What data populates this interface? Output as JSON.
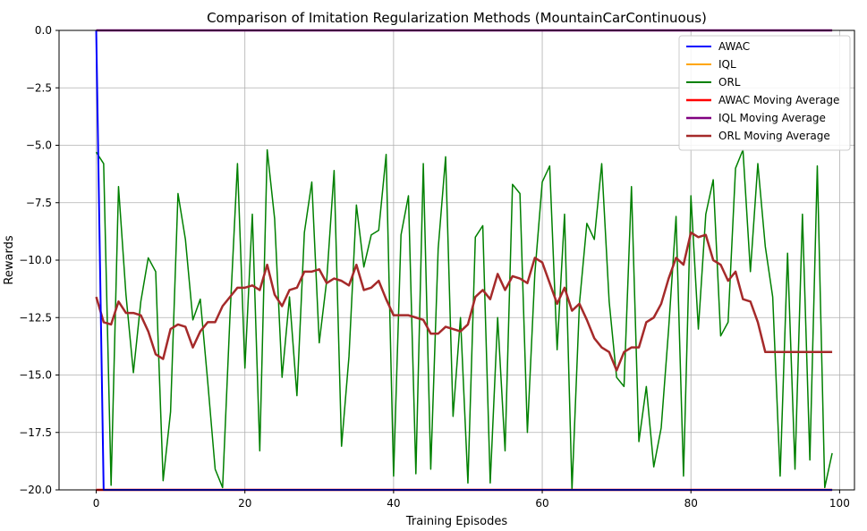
{
  "chart_data": {
    "type": "line",
    "title": "Comparison of Imitation Regularization Methods (MountainCarContinuous)",
    "xlabel": "Training Episodes",
    "ylabel": "Rewards",
    "xlim": [
      -5,
      102
    ],
    "ylim": [
      -20,
      0
    ],
    "xticks": [
      0,
      20,
      40,
      60,
      80,
      100
    ],
    "xtick_labels": [
      "0",
      "20",
      "40",
      "60",
      "80",
      "100"
    ],
    "yticks": [
      0,
      -2.5,
      -5,
      -7.5,
      -10,
      -12.5,
      -15,
      -17.5,
      -20
    ],
    "ytick_labels": [
      "0.0",
      "−2.5",
      "−5.0",
      "−7.5",
      "−10.0",
      "−12.5",
      "−15.0",
      "−17.5",
      "−20.0"
    ],
    "grid": true,
    "legend_position": "top-right",
    "series": [
      {
        "name": "AWAC",
        "color": "#0000ff",
        "width": 2,
        "x": [
          0,
          1,
          2,
          99
        ],
        "y": [
          0,
          -20,
          -20,
          -20
        ]
      },
      {
        "name": "IQL",
        "color": "#ffa500",
        "width": 1.5,
        "x": [
          0,
          99
        ],
        "y": [
          0,
          0
        ]
      },
      {
        "name": "ORL",
        "color": "#008000",
        "width": 1.5,
        "x": [
          0,
          1,
          2,
          3,
          4,
          5,
          6,
          7,
          8,
          9,
          10,
          11,
          12,
          13,
          14,
          15,
          16,
          17,
          18,
          19,
          20,
          21,
          22,
          23,
          24,
          25,
          26,
          27,
          28,
          29,
          30,
          31,
          32,
          33,
          34,
          35,
          36,
          37,
          38,
          39,
          40,
          41,
          42,
          43,
          44,
          45,
          46,
          47,
          48,
          49,
          50,
          51,
          52,
          53,
          54,
          55,
          56,
          57,
          58,
          59,
          60,
          61,
          62,
          63,
          64,
          65,
          66,
          67,
          68,
          69,
          70,
          71,
          72,
          73,
          74,
          75,
          76,
          77,
          78,
          79,
          80,
          81,
          82,
          83,
          84,
          85,
          86,
          87,
          88,
          89,
          90,
          91,
          92,
          93,
          94,
          95,
          96,
          97,
          98,
          99
        ],
        "y": [
          -5.3,
          -5.8,
          -19.8,
          -6.8,
          -11.5,
          -14.9,
          -11.8,
          -9.9,
          -10.5,
          -19.6,
          -16.6,
          -7.1,
          -9.1,
          -12.6,
          -11.7,
          -15.3,
          -19.1,
          -19.9,
          -12.4,
          -5.8,
          -14.7,
          -8.0,
          -18.3,
          -5.2,
          -8.2,
          -15.1,
          -11.6,
          -15.9,
          -8.8,
          -6.6,
          -13.6,
          -10.9,
          -6.1,
          -18.1,
          -14.2,
          -7.6,
          -10.3,
          -8.9,
          -8.7,
          -5.4,
          -19.4,
          -8.9,
          -7.2,
          -19.3,
          -5.8,
          -19.1,
          -9.5,
          -5.5,
          -16.8,
          -12.5,
          -19.7,
          -9.0,
          -8.5,
          -19.7,
          -12.5,
          -18.3,
          -6.7,
          -7.1,
          -17.5,
          -10.6,
          -6.6,
          -5.9,
          -13.9,
          -8.0,
          -20.0,
          -11.9,
          -8.4,
          -9.1,
          -5.8,
          -11.8,
          -15.1,
          -15.5,
          -6.8,
          -17.9,
          -15.5,
          -19.0,
          -17.3,
          -13.0,
          -8.1,
          -19.4,
          -7.2,
          -13.0,
          -8.0,
          -6.5,
          -13.3,
          -12.7,
          -6.0,
          -5.2,
          -10.5,
          -5.8,
          -9.4,
          -11.6,
          -19.4,
          -9.7,
          -19.1,
          -8.0,
          -18.7,
          -5.9,
          -19.9,
          -18.4
        ]
      },
      {
        "name": "AWAC Moving Average",
        "color": "#ff0000",
        "width": 2.5,
        "x": [
          0,
          99
        ],
        "y": [
          -20,
          -20
        ]
      },
      {
        "name": "IQL Moving Average",
        "color": "#800080",
        "width": 2.5,
        "x": [
          0,
          99
        ],
        "y": [
          0,
          0
        ]
      },
      {
        "name": "ORL Moving Average",
        "color": "#a52a2a",
        "width": 2.5,
        "x": [
          0,
          1,
          2,
          3,
          4,
          5,
          6,
          7,
          8,
          9,
          10,
          11,
          12,
          13,
          14,
          15,
          16,
          17,
          18,
          19,
          20,
          21,
          22,
          23,
          24,
          25,
          26,
          27,
          28,
          29,
          30,
          31,
          32,
          33,
          34,
          35,
          36,
          37,
          38,
          39,
          40,
          41,
          42,
          43,
          44,
          45,
          46,
          47,
          48,
          49,
          50,
          51,
          52,
          53,
          54,
          55,
          56,
          57,
          58,
          59,
          60,
          61,
          62,
          63,
          64,
          65,
          66,
          67,
          68,
          69,
          70,
          71,
          72,
          73,
          74,
          75,
          76,
          77,
          78,
          79,
          80,
          81,
          82,
          83,
          84,
          85,
          86,
          87,
          88,
          89,
          90,
          91,
          92,
          93,
          94,
          95,
          96,
          97,
          98,
          99
        ],
        "y": [
          -11.6,
          -12.7,
          -12.8,
          -11.8,
          -12.3,
          -12.3,
          -12.4,
          -13.1,
          -14.1,
          -14.3,
          -13.0,
          -12.8,
          -12.9,
          -13.8,
          -13.1,
          -12.7,
          -12.7,
          -12.0,
          -11.6,
          -11.2,
          -11.2,
          -11.1,
          -11.3,
          -10.2,
          -11.5,
          -12.0,
          -11.3,
          -11.2,
          -10.5,
          -10.5,
          -10.4,
          -11.0,
          -10.8,
          -10.9,
          -11.1,
          -10.2,
          -11.3,
          -11.2,
          -10.9,
          -11.7,
          -12.4,
          -12.4,
          -12.4,
          -12.5,
          -12.6,
          -13.2,
          -13.2,
          -12.9,
          -13.0,
          -13.1,
          -12.8,
          -11.6,
          -11.3,
          -11.7,
          -10.6,
          -11.3,
          -10.7,
          -10.8,
          -11.0,
          -9.9,
          -10.1,
          -11.0,
          -11.9,
          -11.2,
          -12.2,
          -11.9,
          -12.6,
          -13.4,
          -13.8,
          -14.0,
          -14.8,
          -14.0,
          -13.8,
          -13.8,
          -12.7,
          -12.5,
          -11.9,
          -10.8,
          -9.9,
          -10.2,
          -8.8,
          -9.0,
          -8.9,
          -10.0,
          -10.2,
          -10.9,
          -10.5,
          -11.7,
          -11.8,
          -12.7,
          -14.0,
          -14.0,
          -14.0,
          -14.0,
          -14.0,
          -14.0,
          -14.0,
          -14.0,
          -14.0,
          -14.0
        ]
      }
    ]
  }
}
